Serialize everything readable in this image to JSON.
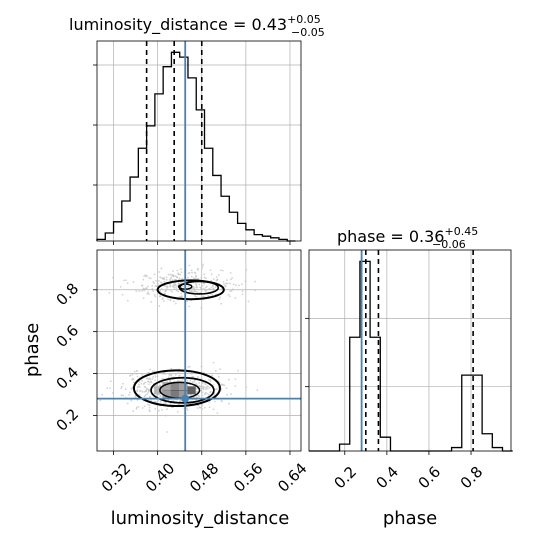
{
  "chart_data": [
    {
      "type": "histogram",
      "panel": "luminosity_distance marginal",
      "title": {
        "main": "luminosity_distance = 0.43",
        "plus": "+0.05",
        "minus": "−0.05"
      },
      "x_range": [
        0.29,
        0.66
      ],
      "x_ticks": [
        0.32,
        0.4,
        0.48,
        0.56,
        0.64
      ],
      "bin_edges": [
        0.29,
        0.305,
        0.32,
        0.335,
        0.35,
        0.365,
        0.38,
        0.395,
        0.41,
        0.425,
        0.44,
        0.455,
        0.47,
        0.485,
        0.5,
        0.515,
        0.53,
        0.545,
        0.56,
        0.575,
        0.59,
        0.605,
        0.62,
        0.635,
        0.65
      ],
      "counts": [
        1,
        5,
        12,
        25,
        40,
        58,
        72,
        92,
        109,
        118,
        115,
        102,
        82,
        58,
        41,
        28,
        18,
        11,
        7,
        4,
        3,
        2,
        1,
        0
      ],
      "quantile_lines": [
        0.38,
        0.43,
        0.48
      ],
      "truth": 0.45,
      "grid": true
    },
    {
      "type": "histogram",
      "panel": "phase marginal",
      "title": {
        "main": "phase = 0.36",
        "plus": "+0.45",
        "minus": "−0.06"
      },
      "x_range": [
        0.03,
        0.99
      ],
      "x_ticks": [
        0.2,
        0.4,
        0.6,
        0.8
      ],
      "bin_edges": [
        0.03,
        0.0784,
        0.1268,
        0.1752,
        0.2236,
        0.272,
        0.3204,
        0.3688,
        0.4172,
        0.4656,
        0.514,
        0.5624,
        0.6108,
        0.6592,
        0.7076,
        0.756,
        0.8044,
        0.8528,
        0.9012,
        0.9496,
        0.998
      ],
      "counts": [
        0,
        0,
        0,
        2,
        33,
        55,
        33,
        4,
        0,
        0,
        0,
        0,
        0,
        0,
        1,
        22,
        22,
        5,
        1,
        0
      ],
      "quantile_lines": [
        0.3,
        0.36,
        0.81
      ],
      "truth": 0.28,
      "grid": true
    },
    {
      "type": "2d-density",
      "panel": "luminosity_distance vs phase",
      "xlabel": "luminosity_distance",
      "ylabel": "phase",
      "x_range": [
        0.29,
        0.66
      ],
      "y_range": [
        0.03,
        0.99
      ],
      "x_ticks": [
        0.32,
        0.4,
        0.48,
        0.56,
        0.64
      ],
      "y_ticks": [
        0.2,
        0.4,
        0.6,
        0.8
      ],
      "truth": {
        "x": 0.45,
        "y": 0.28
      },
      "modes": [
        {
          "x": 0.43,
          "y": 0.32,
          "weight": 0.62,
          "sx": 0.035,
          "sy": 0.035
        },
        {
          "x": 0.45,
          "y": 0.82,
          "weight": 0.38,
          "sx": 0.035,
          "sy": 0.03
        }
      ],
      "grid": true
    }
  ],
  "colors": {
    "truth": "#4682b4",
    "hist_line": "#000000",
    "quantile": "#000000",
    "grid": "#b0b0b0",
    "scatter": "#c0c0c0",
    "density_dark": "#000000"
  },
  "labels": {
    "xlabel_left": "luminosity_distance",
    "xlabel_right": "phase",
    "ylabel": "phase"
  }
}
